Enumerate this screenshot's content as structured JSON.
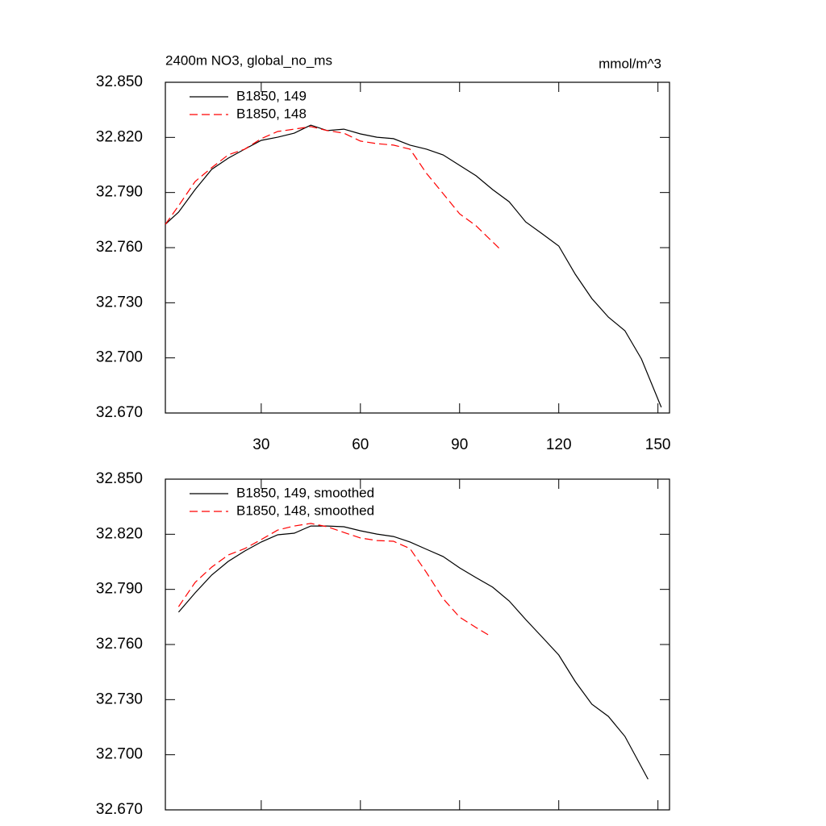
{
  "chart_data": [
    {
      "type": "line",
      "title": "2400m NO3, global_no_ms",
      "units": "mmol/m^3",
      "legend": "upper left",
      "xlim": [
        1,
        153.5
      ],
      "ylim": [
        32.67,
        32.85
      ],
      "xticks": [
        30,
        60,
        90,
        120,
        150
      ],
      "yticks": [
        {
          "value": 32.67,
          "label": "32.670"
        },
        {
          "value": 32.7,
          "label": "32.700"
        },
        {
          "value": 32.73,
          "label": "32.730"
        },
        {
          "value": 32.76,
          "label": "32.760"
        },
        {
          "value": 32.79,
          "label": "32.790"
        },
        {
          "value": 32.82,
          "label": "32.820"
        },
        {
          "value": 32.85,
          "label": "32.850"
        }
      ],
      "series": [
        {
          "name": "B1850, 149",
          "color": "#000000",
          "style": "solid",
          "x": [
            1,
            5,
            10,
            15,
            20,
            25,
            30,
            35,
            40,
            45,
            50,
            55,
            60,
            65,
            70,
            75,
            80,
            85,
            90,
            95,
            100,
            105,
            110,
            115,
            120,
            125,
            130,
            135,
            140,
            145,
            151
          ],
          "values": [
            32.7727,
            32.7793,
            32.7916,
            32.8026,
            32.8087,
            32.8136,
            32.8184,
            32.8201,
            32.8223,
            32.8267,
            32.8237,
            32.8245,
            32.8219,
            32.8201,
            32.8193,
            32.8158,
            32.8136,
            32.8105,
            32.8048,
            32.7991,
            32.7916,
            32.785,
            32.774,
            32.7675,
            32.7609,
            32.7455,
            32.7323,
            32.7222,
            32.7148,
            32.6994,
            32.6731
          ]
        },
        {
          "name": "B1850, 148",
          "color": "#ff0000",
          "style": "dashed",
          "x": [
            1,
            5,
            10,
            15,
            20,
            25,
            30,
            35,
            40,
            45,
            50,
            55,
            60,
            65,
            70,
            75,
            80,
            85,
            90,
            95,
            100,
            102
          ],
          "values": [
            32.7727,
            32.7828,
            32.796,
            32.8035,
            32.8105,
            32.8136,
            32.8193,
            32.8232,
            32.8245,
            32.8259,
            32.8237,
            32.8223,
            32.818,
            32.8166,
            32.8158,
            32.8136,
            32.8004,
            32.7894,
            32.7784,
            32.7719,
            32.7631,
            32.7596
          ]
        }
      ]
    },
    {
      "type": "line",
      "legend": "upper left",
      "xlim": [
        1,
        153.5
      ],
      "ylim": [
        32.67,
        32.85
      ],
      "xticks": [
        30,
        60,
        90,
        120,
        150
      ],
      "yticks": [
        {
          "value": 32.67,
          "label": "32.670"
        },
        {
          "value": 32.7,
          "label": "32.700"
        },
        {
          "value": 32.73,
          "label": "32.730"
        },
        {
          "value": 32.76,
          "label": "32.760"
        },
        {
          "value": 32.79,
          "label": "32.790"
        },
        {
          "value": 32.82,
          "label": "32.820"
        },
        {
          "value": 32.85,
          "label": "32.850"
        }
      ],
      "series": [
        {
          "name": "B1850, 149, smoothed",
          "color": "#000000",
          "style": "solid",
          "x": [
            5,
            10,
            15,
            20,
            25,
            30,
            35,
            40,
            45,
            50,
            55,
            60,
            65,
            70,
            75,
            80,
            85,
            90,
            95,
            100,
            105,
            110,
            115,
            120,
            125,
            130,
            135,
            140,
            147
          ],
          "values": [
            32.7776,
            32.7881,
            32.7978,
            32.8052,
            32.8109,
            32.8158,
            32.8197,
            32.8206,
            32.8245,
            32.8245,
            32.8241,
            32.8219,
            32.8201,
            32.8188,
            32.8158,
            32.8118,
            32.8079,
            32.8017,
            32.7964,
            32.7912,
            32.7837,
            32.7736,
            32.764,
            32.7543,
            32.7398,
            32.7275,
            32.7209,
            32.71,
            32.6867
          ]
        },
        {
          "name": "B1850, 148, smoothed",
          "color": "#ff0000",
          "style": "dashed",
          "x": [
            5,
            10,
            15,
            20,
            25,
            30,
            35,
            40,
            45,
            50,
            55,
            60,
            65,
            70,
            75,
            80,
            85,
            90,
            95,
            99
          ],
          "values": [
            32.7806,
            32.7938,
            32.8021,
            32.8087,
            32.8122,
            32.8171,
            32.8223,
            32.8245,
            32.8259,
            32.8241,
            32.821,
            32.818,
            32.8166,
            32.8162,
            32.8122,
            32.7991,
            32.785,
            32.7749,
            32.7692,
            32.7649
          ]
        }
      ]
    }
  ]
}
